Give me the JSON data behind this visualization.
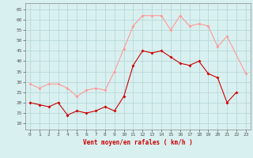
{
  "hours": [
    0,
    1,
    2,
    3,
    4,
    5,
    6,
    7,
    8,
    9,
    10,
    11,
    12,
    13,
    14,
    15,
    16,
    17,
    18,
    19,
    20,
    21,
    22,
    23
  ],
  "wind_avg": [
    20,
    19,
    18,
    20,
    14,
    16,
    15,
    16,
    18,
    16,
    23,
    38,
    45,
    44,
    45,
    42,
    39,
    38,
    40,
    34,
    32,
    20,
    25,
    null
  ],
  "wind_gust": [
    29,
    27,
    29,
    29,
    27,
    23,
    26,
    27,
    26,
    35,
    46,
    57,
    62,
    62,
    62,
    55,
    62,
    57,
    58,
    57,
    47,
    52,
    null,
    34
  ],
  "bg_color": "#d9f0f0",
  "grid_color": "#b8d8d8",
  "avg_color": "#cc0000",
  "gust_color": "#ff9999",
  "xlabel": "Vent moyen/en rafales ( km/h )",
  "xlabel_color": "#cc0000",
  "yticks": [
    10,
    15,
    20,
    25,
    30,
    35,
    40,
    45,
    50,
    55,
    60,
    65
  ],
  "ylim": [
    7,
    68
  ],
  "xlim": [
    -0.5,
    23.5
  ],
  "tick_color": "#555555"
}
